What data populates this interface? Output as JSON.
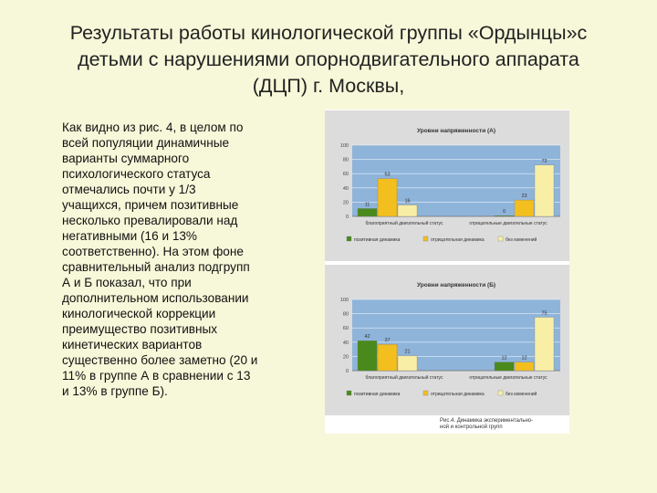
{
  "title_lines": [
    "Результаты работы кинологической группы «Ордынцы»с",
    "детьми с нарушениями опорнодвигательного аппарата",
    "(ДЦП) г. Москвы,"
  ],
  "body_lines": [
    "  Как видно из рис. 4, в целом по",
    "всей популяции динамичные",
    "варианты суммарного",
    "психологического статуса",
    "отмечались почти у 1/3",
    "учащихся, причем позитивные",
    "несколько превалировали над",
    "негативными (16 и 13%",
    "соответственно). На этом фоне",
    "сравнительный анализ подгрупп",
    "А и Б показал, что при",
    "дополнительном использовании",
    "кинологической коррекции",
    "преимущество позитивных",
    "кинетических вариантов",
    "существенно более заметно (20 и",
    "11% в группе А в сравнении с 13",
    "и 13% в группе Б)."
  ],
  "caption_lines": [
    "Рис.4. Динамика экспериментально-",
    "ной и контрольной групп"
  ],
  "colors": {
    "series": [
      "#4a8a1c",
      "#f3bf1e",
      "#f9eea6"
    ],
    "plot_bg": "#8fb4da",
    "panel_bg": "#dcdcdc"
  },
  "chart_data": [
    {
      "type": "bar",
      "title": "Уровни напряженности (А)",
      "categories": [
        "благоприятный двигательный статус",
        "отрицательные двигательные статус"
      ],
      "series": [
        {
          "name": "позитивная динамика",
          "values": [
            11,
            0
          ]
        },
        {
          "name": "отрицательная динамика",
          "values": [
            53,
            23
          ]
        },
        {
          "name": "без изменений",
          "values": [
            16,
            72
          ]
        }
      ],
      "ylim": [
        0,
        100
      ],
      "yticks": [
        0,
        20,
        40,
        60,
        80,
        100
      ],
      "legend": "bottom",
      "grid": true
    },
    {
      "type": "bar",
      "title": "Уровни напряженности (Б)",
      "categories": [
        "благоприятный двигательный статус",
        "отрицательные двигательные статус"
      ],
      "series": [
        {
          "name": "позитивная динамика",
          "values": [
            42,
            12
          ]
        },
        {
          "name": "отрицательная динамика",
          "values": [
            37,
            12
          ]
        },
        {
          "name": "без изменений",
          "values": [
            21,
            75
          ]
        }
      ],
      "ylim": [
        0,
        100
      ],
      "yticks": [
        0,
        20,
        40,
        60,
        80,
        100
      ],
      "legend": "bottom",
      "grid": true
    }
  ]
}
